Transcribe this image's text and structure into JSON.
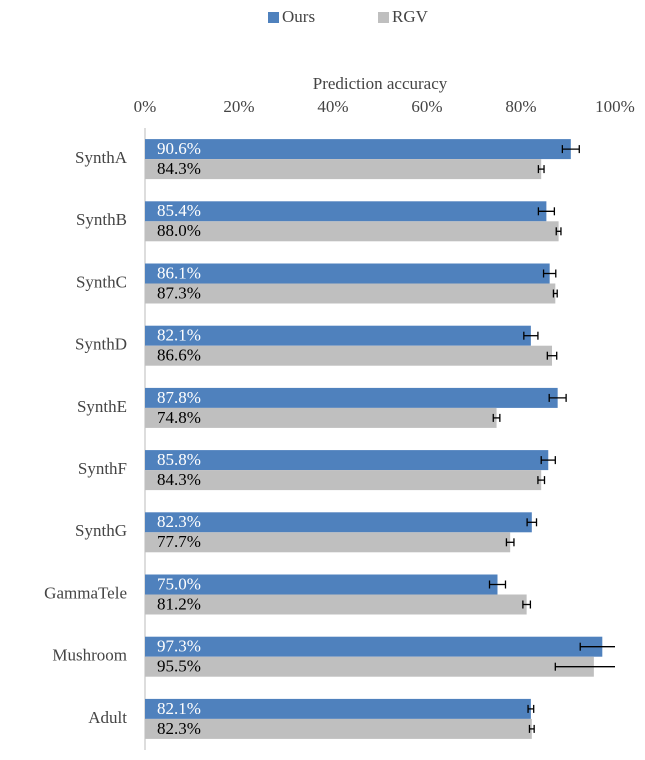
{
  "chart_data": {
    "type": "bar",
    "orientation": "horizontal",
    "x_label": "Prediction accuracy",
    "categories": [
      "SynthA",
      "SynthB",
      "SynthC",
      "SynthD",
      "SynthE",
      "SynthF",
      "SynthG",
      "GammaTele",
      "Mushroom",
      "Adult"
    ],
    "series": [
      {
        "name": "Ours",
        "color": "#4f81bd",
        "values": [
          90.6,
          85.4,
          86.1,
          82.1,
          87.8,
          85.8,
          82.3,
          75.0,
          97.3,
          82.1
        ],
        "value_labels": [
          "90.6%",
          "85.4%",
          "86.1%",
          "82.1%",
          "87.8%",
          "85.8%",
          "82.3%",
          "75.0%",
          "97.3%",
          "82.1%"
        ],
        "errors": [
          1.8,
          1.7,
          1.3,
          1.5,
          1.8,
          1.5,
          1.0,
          1.7,
          4.7,
          0.6
        ]
      },
      {
        "name": "RGV",
        "color": "#bfbfbf",
        "values": [
          84.3,
          88.0,
          87.3,
          86.6,
          74.8,
          84.3,
          77.7,
          81.2,
          95.5,
          82.3
        ],
        "value_labels": [
          "84.3%",
          "88.0%",
          "87.3%",
          "86.6%",
          "74.8%",
          "84.3%",
          "77.7%",
          "81.2%",
          "95.5%",
          "82.3%"
        ],
        "errors": [
          0.6,
          0.5,
          0.4,
          1.0,
          0.7,
          0.7,
          0.8,
          0.8,
          8.2,
          0.5
        ]
      }
    ],
    "xlim": [
      0,
      100
    ],
    "xticks": [
      {
        "value": 0,
        "label": "0%"
      },
      {
        "value": 20,
        "label": "20%"
      },
      {
        "value": 40,
        "label": "40%"
      },
      {
        "value": 60,
        "label": "60%"
      },
      {
        "value": 80,
        "label": "80%"
      },
      {
        "value": 100,
        "label": "100%"
      }
    ],
    "legend": "top"
  }
}
